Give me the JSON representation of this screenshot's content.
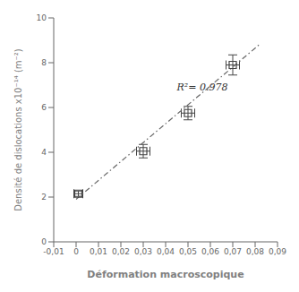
{
  "chart_data": {
    "type": "scatter",
    "xlabel": "Déformation macroscopique",
    "ylabel": "Densité de dislocations x10⁻¹⁴ (m⁻²)",
    "xlim": [
      -0.01,
      0.09
    ],
    "xticks": [
      {
        "value": -0.01,
        "label": "-0,01"
      },
      0,
      {
        "value": 0.01,
        "label": "0,01"
      },
      {
        "value": 0.02,
        "label": "0,02"
      },
      {
        "value": 0.03,
        "label": "0,03"
      },
      {
        "value": 0.04,
        "label": "0,04"
      },
      {
        "value": 0.05,
        "label": "0,05"
      },
      {
        "value": 0.06,
        "label": "0,06"
      },
      {
        "value": 0.07,
        "label": "0,07"
      },
      {
        "value": 0.08,
        "label": "0,08"
      },
      {
        "value": 0.09,
        "label": "0,09"
      }
    ],
    "ylim": [
      0,
      10
    ],
    "yticks": [
      0,
      2,
      4,
      6,
      8,
      10
    ],
    "series": [
      {
        "type": "line",
        "line_style": "dashdot",
        "color": "#666666",
        "x": [
          0.0,
          0.082
        ],
        "values": [
          1.9,
          8.81875
        ]
      },
      {
        "type": "scatter",
        "marker": "square",
        "color": "#444444",
        "x": [
          0.001,
          0.03,
          0.05,
          0.07
        ],
        "values": [
          2.15,
          4.05,
          5.75,
          7.9
        ],
        "xerr": [
          0.002,
          0.003,
          0.003,
          0.003
        ],
        "yerr": [
          0.12,
          0.3,
          0.3,
          0.45
        ]
      }
    ],
    "annotations": [
      {
        "text": "R²= 0.978",
        "x": 0.043,
        "y": 6.9
      }
    ]
  }
}
